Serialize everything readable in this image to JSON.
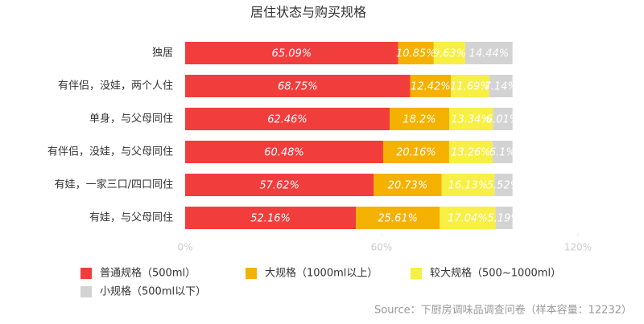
{
  "chart_data": {
    "type": "stacked-bar-horizontal",
    "title": "居住状态与购买规格",
    "categories": [
      "独居",
      "有伴侣，没娃，两个人住",
      "单身，与父母同住",
      "有伴侣，没娃，与父母同住",
      "有娃，一家三口/四口同住",
      "有娃，与父母同住"
    ],
    "series": [
      {
        "name": "普通规格（500ml）",
        "color": "#f23d3d",
        "values": [
          65.09,
          68.75,
          62.46,
          60.48,
          57.62,
          52.16
        ],
        "value_labels": [
          "65.09%",
          "68.75%",
          "62.46%",
          "60.48%",
          "57.62%",
          "52.16%"
        ]
      },
      {
        "name": "大规格（1000ml以上）",
        "color": "#f5b100",
        "values": [
          10.85,
          12.42,
          18.2,
          20.16,
          20.73,
          25.61
        ],
        "value_labels": [
          "10.85%",
          "12.42%",
          "18.2%",
          "20.16%",
          "20.73%",
          "25.61%"
        ]
      },
      {
        "name": "较大规格（500~1000ml）",
        "color": "#f8ef45",
        "values": [
          9.63,
          11.69,
          13.34,
          13.26,
          16.13,
          17.04
        ],
        "value_labels": [
          "9.63%",
          "11.69%",
          "13.34%",
          "13.26%",
          "16.13%",
          "17.04%"
        ]
      },
      {
        "name": "小规格（500ml以下）",
        "color": "#d3d3d3",
        "values": [
          14.44,
          7.14,
          6.01,
          6.1,
          5.52,
          5.19
        ],
        "value_labels": [
          "14.44%",
          "7.14%",
          "6.01%",
          "6.1%",
          "5.52%",
          "5.19%"
        ]
      }
    ],
    "xlim": [
      0,
      120
    ],
    "xticks": [
      {
        "value": 0,
        "label": "0%"
      },
      {
        "value": 60,
        "label": "60%"
      },
      {
        "value": 120,
        "label": "120%"
      }
    ],
    "source": "Source：下厨房调味品调查问卷（样本容量：12232）"
  }
}
